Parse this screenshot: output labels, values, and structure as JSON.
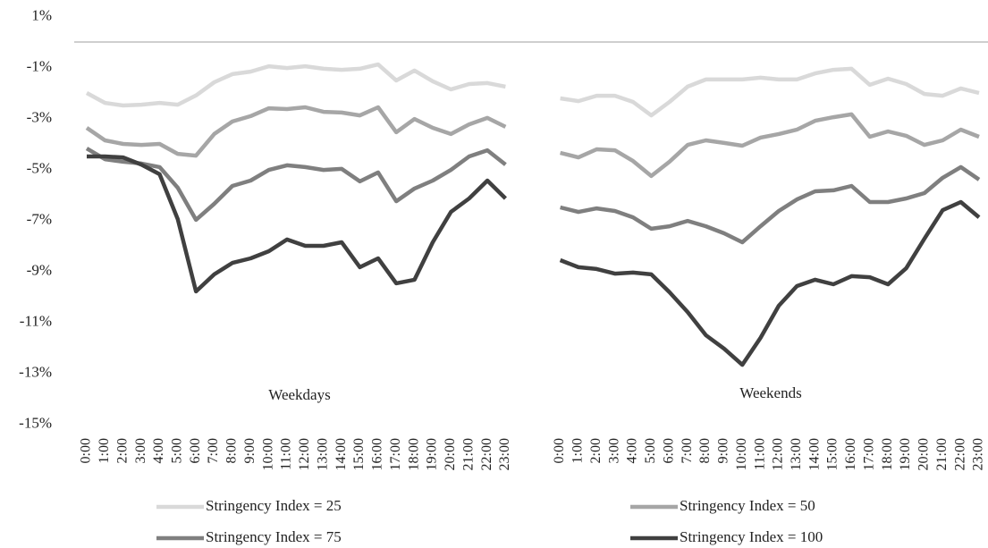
{
  "chart_data": {
    "type": "line",
    "categories": [
      "0:00",
      "1:00",
      "2:00",
      "3:00",
      "4:00",
      "5:00",
      "6:00",
      "7:00",
      "8:00",
      "9:00",
      "10:00",
      "11:00",
      "12:00",
      "13:00",
      "14:00",
      "15:00",
      "16:00",
      "17:00",
      "18:00",
      "19:00",
      "20:00",
      "21:00",
      "22:00",
      "23:00",
      null,
      null,
      "0:00",
      "1:00",
      "2:00",
      "3:00",
      "4:00",
      "5:00",
      "6:00",
      "7:00",
      "8:00",
      "9:00",
      "10:00",
      "11:00",
      "12:00",
      "13:00",
      "14:00",
      "15:00",
      "16:00",
      "17:00",
      "18:00",
      "19:00",
      "20:00",
      "21:00",
      "22:00",
      "23:00"
    ],
    "series": [
      {
        "name": "Stringency Index = 25",
        "color": "#d9d9d9",
        "values": [
          -2.0,
          -2.39,
          -2.49,
          -2.46,
          -2.39,
          -2.46,
          -2.1,
          -1.58,
          -1.26,
          -1.16,
          -0.95,
          -1.02,
          -0.95,
          -1.05,
          -1.09,
          -1.05,
          -0.88,
          -1.51,
          -1.12,
          -1.54,
          -1.86,
          -1.65,
          -1.61,
          -1.75,
          null,
          null,
          -2.21,
          -2.32,
          -2.11,
          -2.11,
          -2.35,
          -2.88,
          -2.35,
          -1.75,
          -1.47,
          -1.47,
          -1.47,
          -1.4,
          -1.47,
          -1.47,
          -1.23,
          -1.09,
          -1.05,
          -1.68,
          -1.44,
          -1.65,
          -2.04,
          -2.11,
          -1.82,
          -2.0
        ]
      },
      {
        "name": "Stringency Index = 50",
        "color": "#a6a6a6",
        "values": [
          -3.37,
          -3.86,
          -4.0,
          -4.04,
          -4.0,
          -4.39,
          -4.46,
          -3.61,
          -3.12,
          -2.91,
          -2.6,
          -2.63,
          -2.56,
          -2.74,
          -2.77,
          -2.88,
          -2.56,
          -3.54,
          -3.02,
          -3.37,
          -3.61,
          -3.23,
          -2.98,
          -3.33,
          null,
          null,
          -4.35,
          -4.53,
          -4.21,
          -4.25,
          -4.67,
          -5.26,
          -4.7,
          -4.04,
          -3.86,
          -3.96,
          -4.07,
          -3.75,
          -3.61,
          -3.44,
          -3.09,
          -2.95,
          -2.84,
          -3.72,
          -3.51,
          -3.68,
          -4.04,
          -3.86,
          -3.44,
          -3.72
        ]
      },
      {
        "name": "Stringency Index = 75",
        "color": "#7f7f7f",
        "values": [
          -4.18,
          -4.6,
          -4.7,
          -4.77,
          -4.91,
          -5.72,
          -6.98,
          -6.35,
          -5.65,
          -5.44,
          -5.02,
          -4.84,
          -4.91,
          -5.02,
          -4.98,
          -5.47,
          -5.12,
          -6.25,
          -5.75,
          -5.44,
          -5.02,
          -4.49,
          -4.25,
          -4.81,
          null,
          null,
          -6.49,
          -6.67,
          -6.53,
          -6.63,
          -6.88,
          -7.33,
          -7.23,
          -7.02,
          -7.23,
          -7.51,
          -7.86,
          -7.23,
          -6.63,
          -6.18,
          -5.86,
          -5.82,
          -5.65,
          -6.28,
          -6.28,
          -6.14,
          -5.93,
          -5.33,
          -4.91,
          -5.4
        ]
      },
      {
        "name": "Stringency Index = 100",
        "color": "#404040",
        "values": [
          -4.49,
          -4.49,
          -4.53,
          -4.81,
          -5.19,
          -6.95,
          -9.79,
          -9.12,
          -8.67,
          -8.49,
          -8.21,
          -7.75,
          -8.0,
          -8.0,
          -7.86,
          -8.84,
          -8.49,
          -9.47,
          -9.33,
          -7.86,
          -6.67,
          -6.14,
          -5.44,
          -6.14,
          null,
          null,
          -8.56,
          -8.84,
          -8.91,
          -9.09,
          -9.05,
          -9.12,
          -9.82,
          -10.6,
          -11.51,
          -12.04,
          -12.67,
          -11.61,
          -10.35,
          -9.58,
          -9.33,
          -9.51,
          -9.19,
          -9.23,
          -9.51,
          -8.88,
          -7.72,
          -6.6,
          -6.28,
          -6.88
        ]
      }
    ],
    "annotations": [
      {
        "text": "Weekdays"
      },
      {
        "text": "Weekends"
      }
    ],
    "ylim": [
      -15,
      1
    ],
    "yticks": [
      {
        "value": 1,
        "label": "1%"
      },
      {
        "value": -1,
        "label": "-1%"
      },
      {
        "value": -3,
        "label": "-3%"
      },
      {
        "value": -5,
        "label": "-5%"
      },
      {
        "value": -7,
        "label": "-7%"
      },
      {
        "value": -9,
        "label": "-9%"
      },
      {
        "value": -11,
        "label": "-11%"
      },
      {
        "value": -13,
        "label": "-13%"
      },
      {
        "value": -15,
        "label": "-15%"
      }
    ],
    "grid": false,
    "legend": "bottom"
  }
}
